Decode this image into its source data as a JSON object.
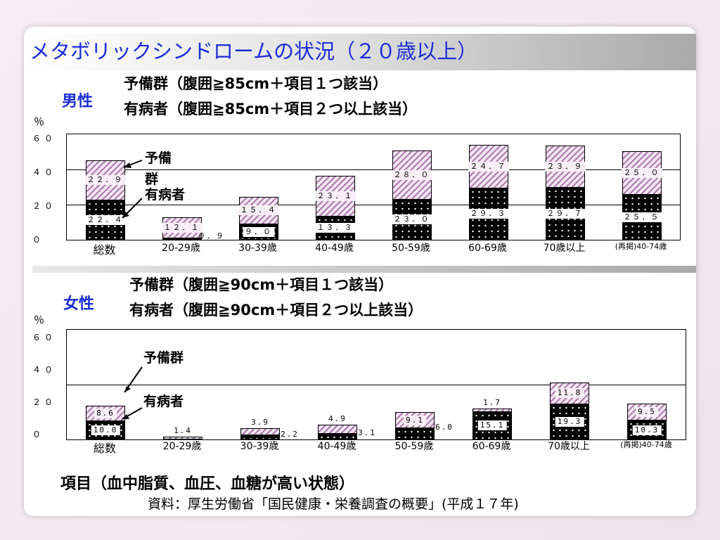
{
  "slide": {
    "title": "メタボリックシンドロームの状況（２０歳以上）",
    "footer_items": "項目（血中脂質、血圧、血糖が高い状態）",
    "footer_source": "資料：厚生労働省「国民健康・栄養調査の概要」(平成１７年)"
  },
  "colors": {
    "title": "#1a2ed8",
    "group_label": "#1a2ed8",
    "pre_hatch": "#b07ab0",
    "disease": "#000000"
  },
  "male": {
    "group_label": "男性",
    "heading_pre": "予備群（腹囲≧85cm＋項目１つ該当）",
    "heading_dis": "有病者（腹囲≧85cm＋項目２つ以上該当）",
    "unit": "％",
    "ticks": [
      "６０",
      "４０",
      "２０",
      "０"
    ],
    "annotation_pre": "予備\n群",
    "annotation_dis": "有病者"
  },
  "female": {
    "group_label": "女性",
    "heading_pre": "予備群（腹囲≧90cm＋項目１つ該当）",
    "heading_dis": "有病者（腹囲≧90cm＋項目２つ以上該当）",
    "unit": "％",
    "ticks": [
      "６０",
      "４０",
      "２０",
      "０"
    ],
    "annotation_pre": "予備群",
    "annotation_dis": "有病者"
  },
  "chart_data": [
    {
      "type": "bar",
      "stacked": true,
      "categories": [
        "総数",
        "20-29歳",
        "30-39歳",
        "40-49歳",
        "50-59歳",
        "60-69歳",
        "70歳以上",
        "(再掲)40-74歳"
      ],
      "series": [
        {
          "name": "有病者",
          "values": [
            22.4,
            0.9,
            9.0,
            13.3,
            23.0,
            29.3,
            29.7,
            25.5
          ],
          "labels": [
            "２２．４",
            "０．９",
            "９．０",
            "１３．３",
            "２３．０",
            "２９．３",
            "２９．７",
            "２５．５"
          ]
        },
        {
          "name": "予備群",
          "values": [
            22.9,
            12.1,
            15.4,
            23.1,
            28.0,
            24.7,
            23.9,
            25.0
          ],
          "labels": [
            "２２．９",
            "１２．１",
            "１５．４",
            "２３．１",
            "２８．０",
            "２４．７",
            "２３．９",
            "２５．０"
          ]
        }
      ],
      "ylim": [
        0,
        60
      ],
      "grid": true
    },
    {
      "type": "bar",
      "stacked": true,
      "categories": [
        "総数",
        "20-29歳",
        "30-39歳",
        "40-49歳",
        "50-59歳",
        "60-69歳",
        "70歳以上",
        "(再掲)40-74歳"
      ],
      "series": [
        {
          "name": "有病者",
          "values": [
            10.0,
            0.0,
            2.2,
            3.1,
            6.0,
            15.1,
            19.3,
            10.3
          ],
          "labels": [
            "10.0",
            "",
            "2.2",
            "3.1",
            "6.0",
            "15.1",
            "19.3",
            "10.3"
          ]
        },
        {
          "name": "予備群",
          "values": [
            8.6,
            1.4,
            3.9,
            4.9,
            9.1,
            1.7,
            11.8,
            9.5
          ],
          "labels": [
            "8.6",
            "1.4",
            "3.9",
            "4.9",
            "9.1",
            "1.7",
            "11.8",
            "9.5"
          ]
        }
      ],
      "ylim": [
        0,
        60
      ],
      "grid": true
    }
  ]
}
